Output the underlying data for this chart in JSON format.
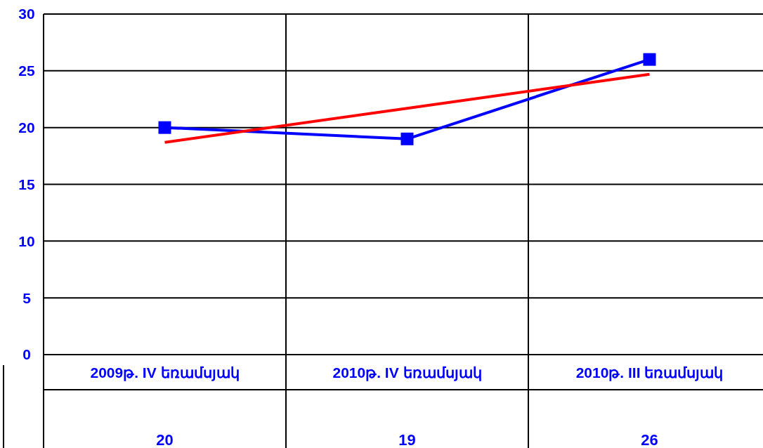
{
  "chart_data": {
    "type": "line",
    "categories": [
      "2009թ. IV եռամսյակ",
      "2010թ. IV եռամսյակ",
      "2010թ. III եռամսյակ"
    ],
    "series": [
      {
        "color": "#0000ff",
        "values": [
          20,
          19,
          26
        ],
        "marker": "square",
        "value_labels": [
          "20",
          "19",
          "26"
        ]
      },
      {
        "color": "#ff0000",
        "values": [
          18.7,
          21.7,
          24.7
        ],
        "marker": "none"
      }
    ],
    "ylim": [
      0,
      30
    ],
    "yticks": [
      0,
      5,
      10,
      15,
      20,
      25,
      30
    ],
    "grid": true
  }
}
